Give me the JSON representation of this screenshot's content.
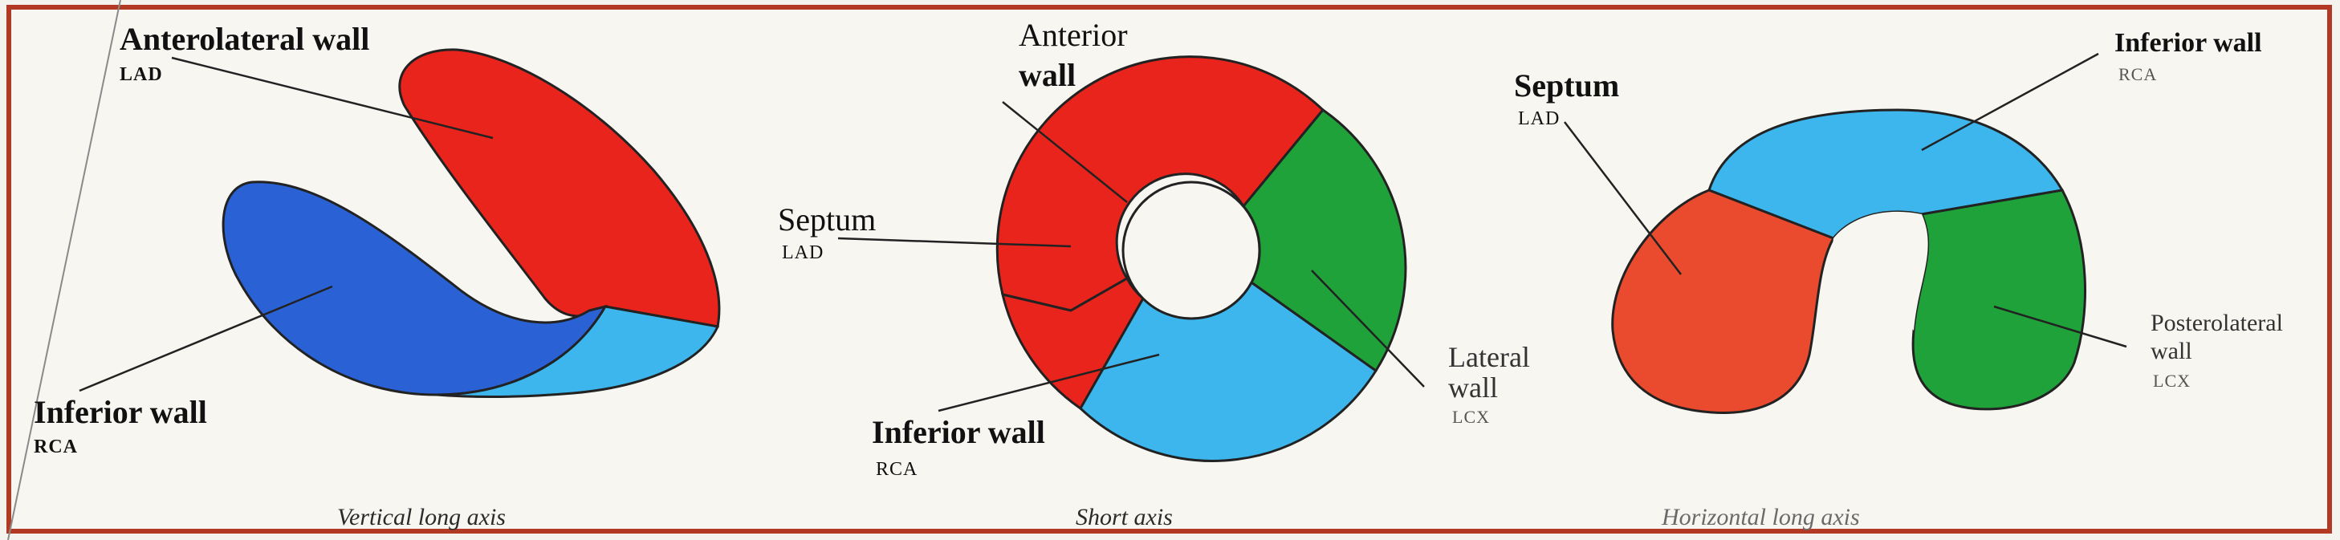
{
  "panels": [
    {
      "caption": "Vertical long axis",
      "labels": [
        {
          "main": "Anterolateral wall",
          "sub": "LAD"
        },
        {
          "main": "Inferior wall",
          "sub": "RCA"
        }
      ]
    },
    {
      "caption": "Short axis",
      "labels": [
        {
          "main_line1": "Anterior",
          "main_line2": "wall"
        },
        {
          "main": "Septum",
          "sub": "LAD"
        },
        {
          "main": "Inferior wall",
          "sub": "RCA"
        },
        {
          "main_line1": "Lateral",
          "main_line2": "wall",
          "sub": "LCX"
        }
      ]
    },
    {
      "caption": "Horizontal long axis",
      "labels": [
        {
          "main": "Septum",
          "sub": "LAD"
        },
        {
          "main": "Inferior wall",
          "sub": "RCA"
        },
        {
          "main_line1": "Posterolateral",
          "main_line2": "wall",
          "sub": "LCX"
        }
      ]
    }
  ],
  "colors": {
    "red": "#e8241c",
    "blue": "#2a62d6",
    "lightblue": "#3cb6ec",
    "green": "#1fa23a",
    "orange_red": "#ea4a2e",
    "frame": "#b23a24"
  }
}
